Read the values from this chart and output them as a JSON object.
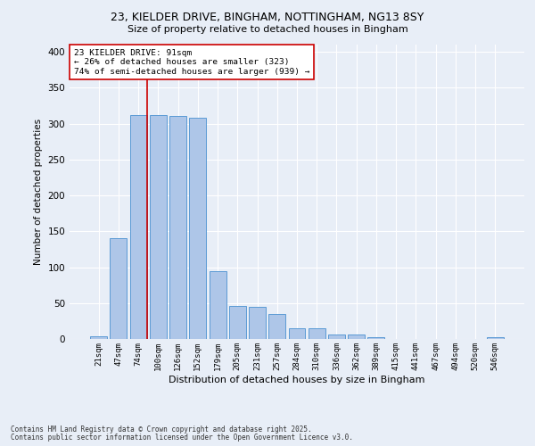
{
  "title_line1": "23, KIELDER DRIVE, BINGHAM, NOTTINGHAM, NG13 8SY",
  "title_line2": "Size of property relative to detached houses in Bingham",
  "xlabel": "Distribution of detached houses by size in Bingham",
  "ylabel": "Number of detached properties",
  "categories": [
    "21sqm",
    "47sqm",
    "74sqm",
    "100sqm",
    "126sqm",
    "152sqm",
    "179sqm",
    "205sqm",
    "231sqm",
    "257sqm",
    "284sqm",
    "310sqm",
    "336sqm",
    "362sqm",
    "389sqm",
    "415sqm",
    "441sqm",
    "467sqm",
    "494sqm",
    "520sqm",
    "546sqm"
  ],
  "values": [
    4,
    140,
    312,
    312,
    310,
    308,
    95,
    46,
    45,
    35,
    15,
    15,
    6,
    6,
    2,
    0,
    0,
    0,
    0,
    0,
    3
  ],
  "bar_color": "#aec6e8",
  "bar_edge_color": "#5b9bd5",
  "vline_color": "#cc0000",
  "vline_x_index": 2,
  "annotation_text": "23 KIELDER DRIVE: 91sqm\n← 26% of detached houses are smaller (323)\n74% of semi-detached houses are larger (939) →",
  "annotation_box_color": "#ffffff",
  "annotation_box_edge": "#cc0000",
  "background_color": "#e8eef7",
  "plot_bg_color": "#e8eef7",
  "grid_color": "#ffffff",
  "footer_line1": "Contains HM Land Registry data © Crown copyright and database right 2025.",
  "footer_line2": "Contains public sector information licensed under the Open Government Licence v3.0.",
  "ylim": [
    0,
    410
  ],
  "yticks": [
    0,
    50,
    100,
    150,
    200,
    250,
    300,
    350,
    400
  ]
}
